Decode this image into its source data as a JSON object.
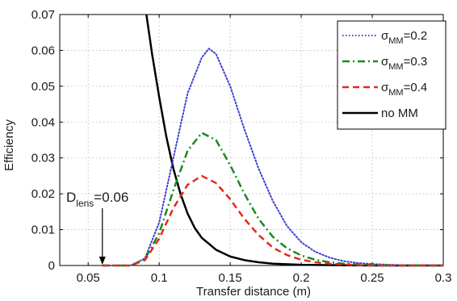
{
  "chart_data": {
    "type": "line",
    "xlabel": "Transfer distance (m)",
    "ylabel": "Efficiency",
    "xlim": [
      0.03,
      0.3
    ],
    "ylim": [
      0,
      0.07
    ],
    "xticks": [
      "0.05",
      "0.1",
      "0.15",
      "0.2",
      "0.25",
      "0.3"
    ],
    "yticks": [
      "0",
      "0.01",
      "0.02",
      "0.03",
      "0.04",
      "0.05",
      "0.06",
      "0.07"
    ],
    "grid": true,
    "legend_position": "top-right",
    "legend_labels": {
      "sigma_symbol": "σ",
      "sigma_subscript": "MM",
      "no_mm": "no MM"
    },
    "series": [
      {
        "key": "s02",
        "sigma_value": "=0.2",
        "color": "#3f3fd6",
        "style": "dotted",
        "x": [
          0.06,
          0.08,
          0.09,
          0.1,
          0.11,
          0.12,
          0.13,
          0.135,
          0.14,
          0.15,
          0.16,
          0.17,
          0.18,
          0.19,
          0.2,
          0.21,
          0.22,
          0.23,
          0.24,
          0.25,
          0.27,
          0.3
        ],
        "y": [
          0,
          0,
          0.002,
          0.012,
          0.03,
          0.048,
          0.058,
          0.0605,
          0.059,
          0.05,
          0.038,
          0.027,
          0.018,
          0.011,
          0.0065,
          0.0038,
          0.0022,
          0.0012,
          0.0007,
          0.0004,
          0.0001,
          0
        ]
      },
      {
        "key": "s03",
        "sigma_value": "=0.3",
        "color": "#1c8a1c",
        "style": "dashdot",
        "x": [
          0.06,
          0.08,
          0.09,
          0.1,
          0.11,
          0.12,
          0.13,
          0.14,
          0.15,
          0.16,
          0.17,
          0.18,
          0.19,
          0.2,
          0.21,
          0.22,
          0.23,
          0.24,
          0.25,
          0.27,
          0.3
        ],
        "y": [
          0,
          0,
          0.0018,
          0.009,
          0.021,
          0.032,
          0.037,
          0.035,
          0.028,
          0.02,
          0.013,
          0.008,
          0.0048,
          0.0028,
          0.0016,
          0.0009,
          0.0005,
          0.0003,
          0.0001,
          0,
          0
        ]
      },
      {
        "key": "s04",
        "sigma_value": "=0.4",
        "color": "#e32a1e",
        "style": "dashed",
        "x": [
          0.06,
          0.08,
          0.09,
          0.1,
          0.11,
          0.12,
          0.13,
          0.14,
          0.15,
          0.16,
          0.17,
          0.18,
          0.19,
          0.2,
          0.21,
          0.22,
          0.23,
          0.24,
          0.25,
          0.27,
          0.3
        ],
        "y": [
          0,
          0,
          0.0015,
          0.0075,
          0.016,
          0.0225,
          0.025,
          0.023,
          0.0185,
          0.013,
          0.0085,
          0.005,
          0.0029,
          0.0016,
          0.0009,
          0.0005,
          0.0003,
          0.0001,
          0,
          0,
          0
        ]
      },
      {
        "key": "nomm",
        "color": "#000000",
        "style": "solid",
        "x": [
          0.091,
          0.095,
          0.1,
          0.105,
          0.11,
          0.115,
          0.12,
          0.125,
          0.13,
          0.14,
          0.15,
          0.16,
          0.17,
          0.18,
          0.2,
          0.22,
          0.25,
          0.28,
          0.3
        ],
        "y": [
          0.07,
          0.059,
          0.047,
          0.036,
          0.027,
          0.02,
          0.0145,
          0.0105,
          0.0077,
          0.0044,
          0.0025,
          0.0015,
          0.0009,
          0.0005,
          0.0002,
          0.0001,
          0,
          0,
          0
        ]
      }
    ],
    "annotation": {
      "main": "D",
      "subscript": "lens",
      "suffix": "=0.06",
      "x": 0.06,
      "y": 0
    }
  }
}
